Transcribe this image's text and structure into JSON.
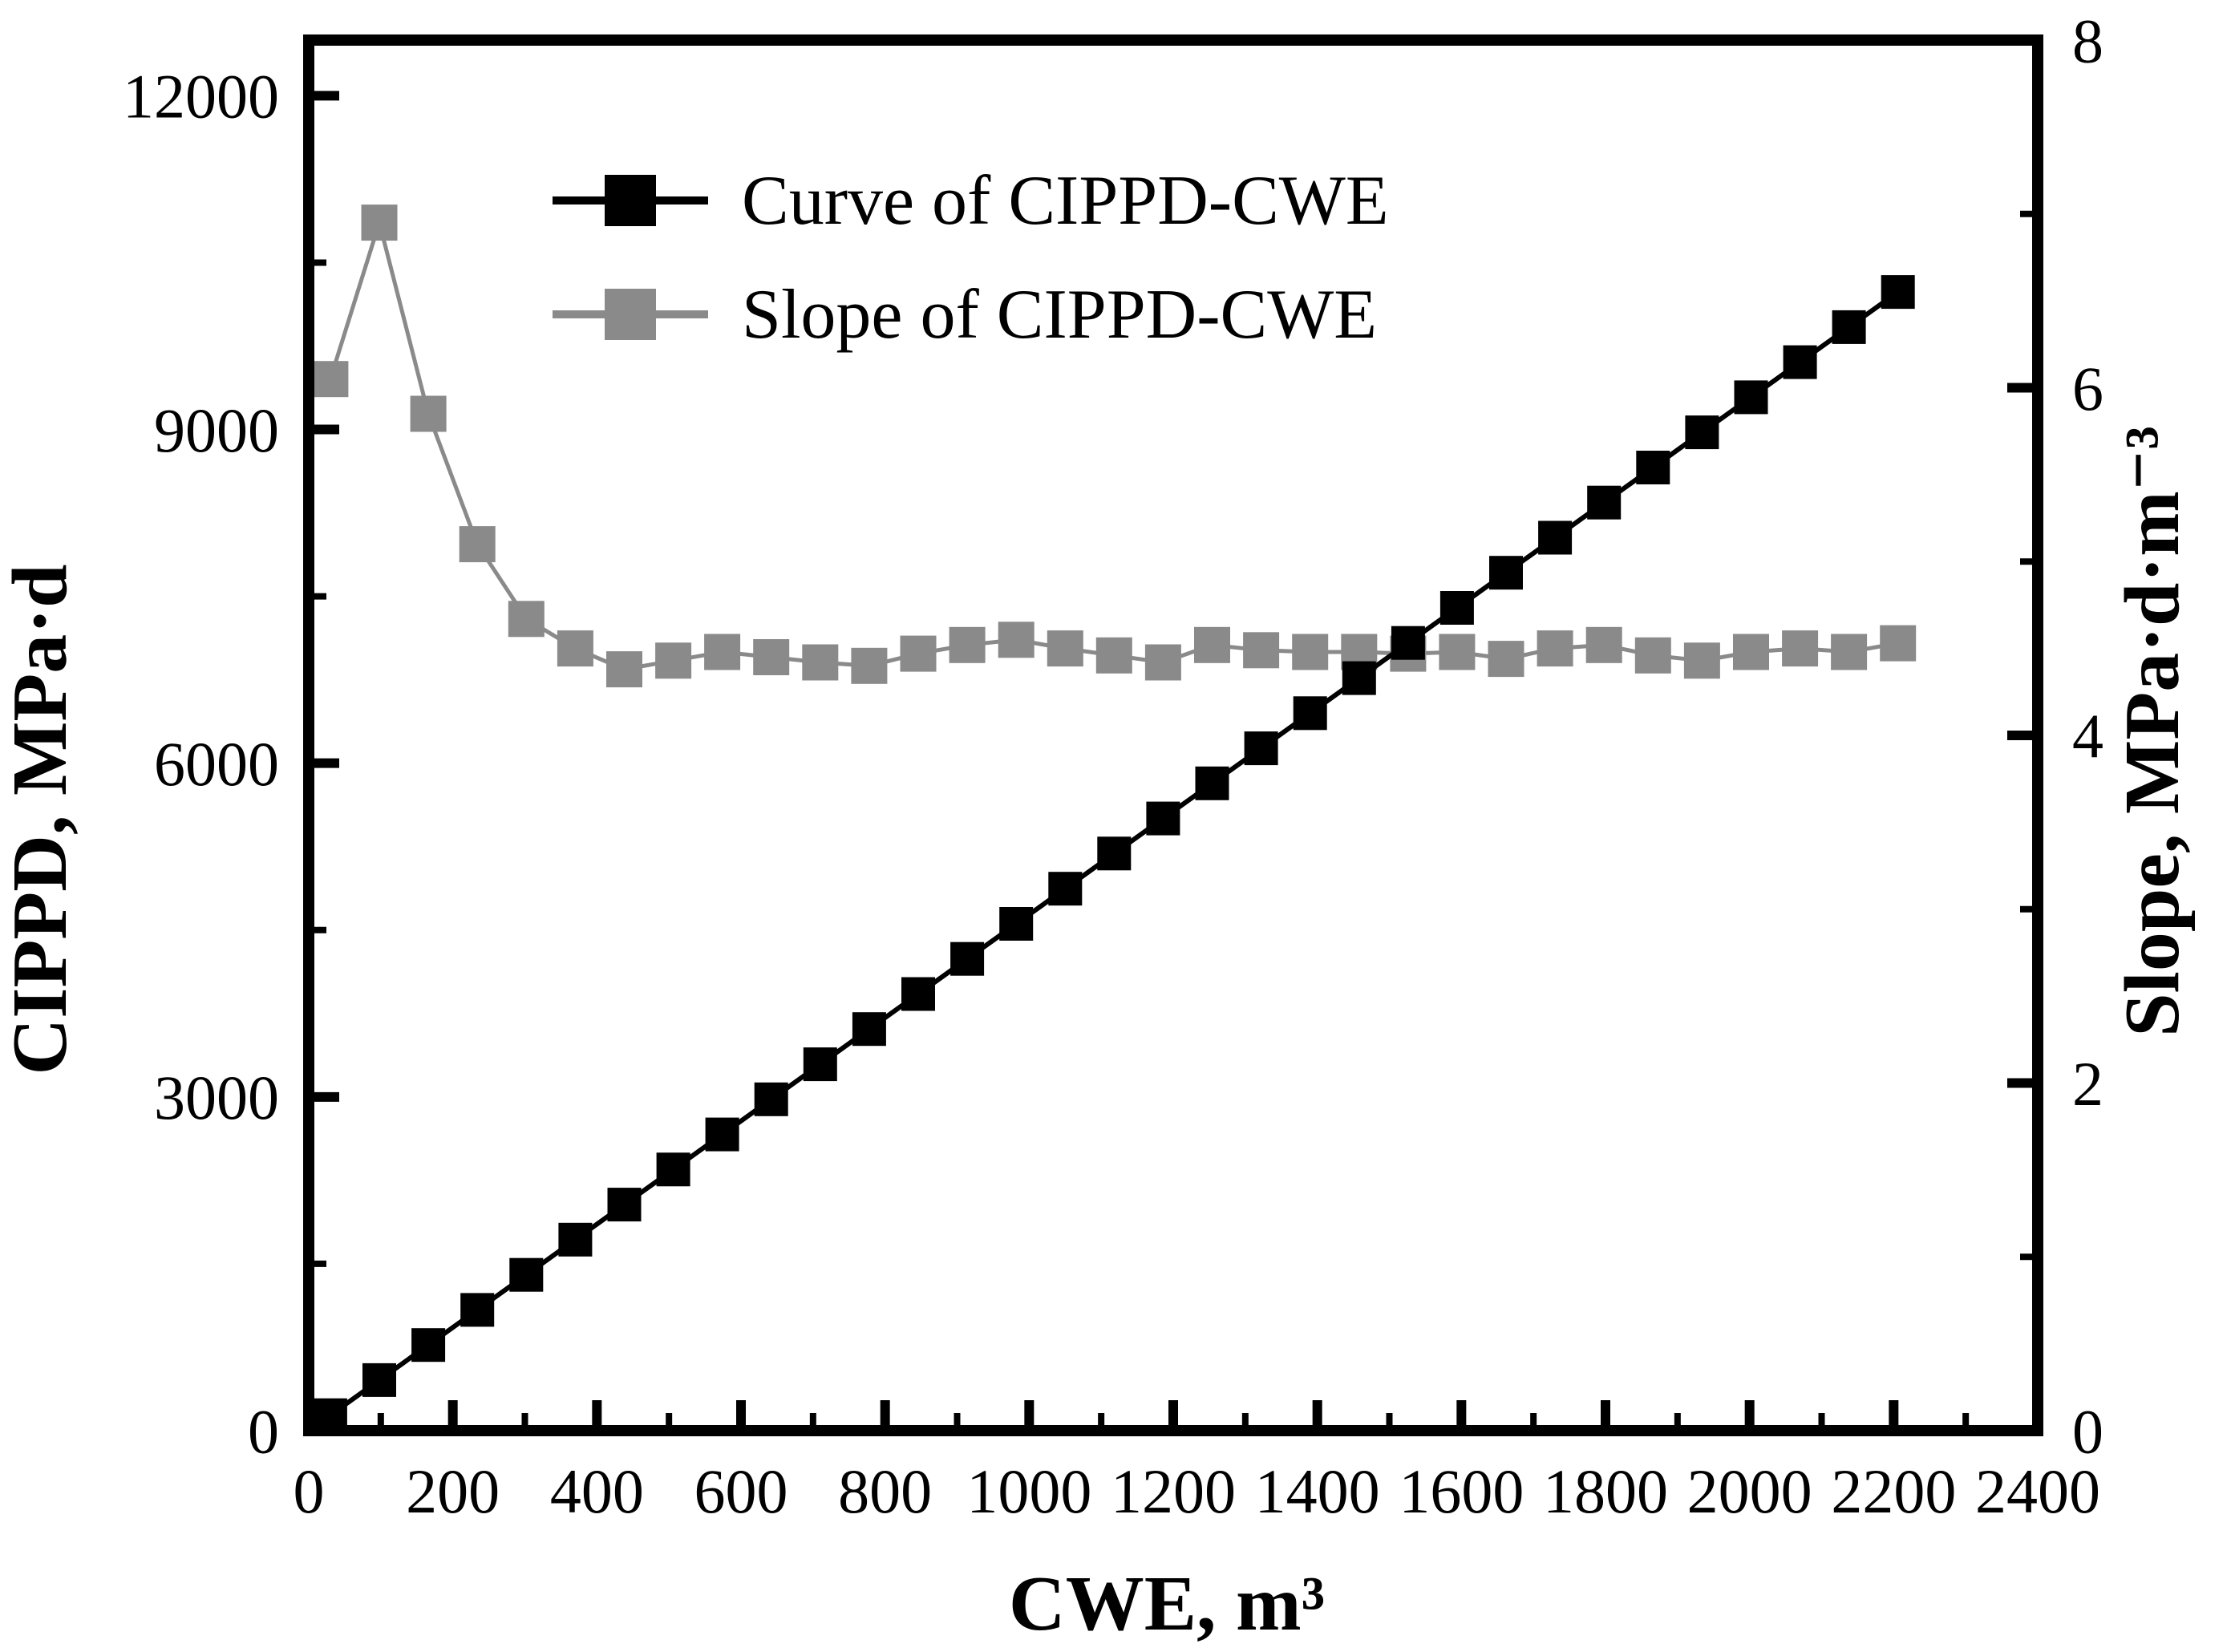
{
  "figure": {
    "background_color": "#ffffff",
    "frame_color": "#000000"
  },
  "axes": {
    "x": {
      "title": "CWE, m³",
      "tick_labels": [
        "0",
        "200",
        "400",
        "600",
        "800",
        "1000",
        "1200",
        "1400",
        "1600",
        "1800",
        "2000",
        "2200",
        "2400"
      ]
    },
    "y_left": {
      "title": "CIPPD, MPa·d",
      "tick_labels": [
        "0",
        "3000",
        "6000",
        "9000",
        "12000"
      ]
    },
    "y_right": {
      "title": "Slope, MPa·d·m⁻³",
      "tick_labels": [
        "0",
        "2",
        "4",
        "6",
        "8"
      ]
    }
  },
  "legend": {
    "items": [
      {
        "label": "Curve of CIPPD-CWE",
        "color": "#000000"
      },
      {
        "label": "Slope of CIPPD-CWE",
        "color": "#8a8a8a"
      }
    ]
  },
  "chart_data": {
    "type": "line",
    "title": "",
    "xlabel": "CWE, m³",
    "ylabel_left": "CIPPD, MPa·d",
    "ylabel_right": "Slope, MPa·d·m⁻³",
    "xlim": [
      0,
      2400
    ],
    "ylim_left": [
      0,
      12500
    ],
    "ylim_right": [
      0,
      8
    ],
    "grid": false,
    "legend_position": "upper-left-inside",
    "x_ticks": {
      "major": [
        0,
        200,
        400,
        600,
        800,
        1000,
        1200,
        1400,
        1600,
        1800,
        2000,
        2200,
        2400
      ],
      "minor": [
        100,
        300,
        500,
        700,
        900,
        1100,
        1300,
        1500,
        1700,
        1900,
        2100,
        2300
      ]
    },
    "y_left_ticks": {
      "major": [
        0,
        3000,
        6000,
        9000,
        12000
      ],
      "minor": [
        1500,
        4500,
        7500,
        10500
      ]
    },
    "y_right_ticks": {
      "major": [
        0,
        2,
        4,
        6,
        8
      ],
      "minor": [
        1,
        3,
        5,
        7
      ]
    },
    "x": [
      30,
      98,
      166,
      234,
      302,
      370,
      438,
      506,
      574,
      642,
      710,
      778,
      846,
      914,
      982,
      1050,
      1118,
      1186,
      1254,
      1322,
      1390,
      1458,
      1526,
      1594,
      1662,
      1730,
      1798,
      1866,
      1934,
      2002,
      2070,
      2138,
      2206
    ],
    "series": [
      {
        "name": "Curve of CIPPD-CWE",
        "axis": "left",
        "color": "#000000",
        "marker": "square",
        "values": [
          139,
          455,
          770,
          1086,
          1401,
          1717,
          2032,
          2348,
          2663,
          2979,
          3294,
          3610,
          3925,
          4241,
          4556,
          4872,
          5188,
          5503,
          5819,
          6134,
          6450,
          6765,
          7081,
          7396,
          7712,
          8027,
          8343,
          8658,
          8974,
          9289,
          9605,
          9920,
          10236
        ]
      },
      {
        "name": "Slope of CIPPD-CWE",
        "axis": "right",
        "color": "#8a8a8a",
        "marker": "square",
        "values": [
          6.05,
          6.95,
          5.85,
          5.1,
          4.67,
          4.5,
          4.38,
          4.43,
          4.48,
          4.45,
          4.42,
          4.4,
          4.47,
          4.52,
          4.55,
          4.5,
          4.46,
          4.42,
          4.52,
          4.49,
          4.48,
          4.48,
          4.47,
          4.48,
          4.44,
          4.5,
          4.52,
          4.46,
          4.43,
          4.48,
          4.5,
          4.48,
          4.53
        ]
      }
    ]
  }
}
